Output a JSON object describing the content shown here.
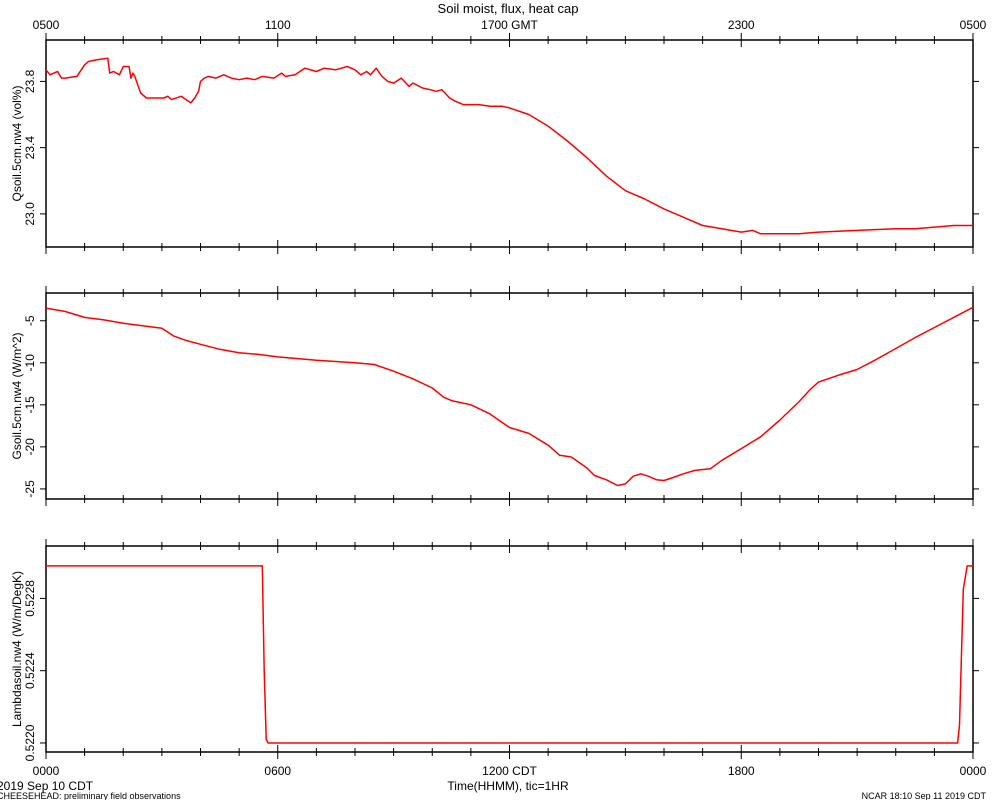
{
  "chart_data": {
    "type": "line",
    "title": "Soil moist, flux, heat cap",
    "top_axis": {
      "ticks": [
        "0500",
        "1100",
        "1700 GMT",
        "2300",
        "0500"
      ]
    },
    "bottom_axis": {
      "ticks": [
        "0000",
        "0600",
        "1200 CDT",
        "1800",
        "0000"
      ],
      "label": "Time(HHMM), tic=1HR",
      "left_note": "2019 Sep 10 CDT"
    },
    "footer": {
      "left": "CHEESEHEAD: preliminary field observations",
      "right": "NCAR 18:10 Sep 11 2019 CDT"
    },
    "x_unit": "hours from 0000 CDT",
    "xlim": [
      0,
      24
    ],
    "line_color": "#ff0000",
    "panels": [
      {
        "ylabel": "Qsoil.5cm.nw4 (vol%)",
        "ylim": [
          22.8,
          24.05
        ],
        "yticks": [
          "23.0",
          "23.4",
          "23.8"
        ],
        "ytick_values": [
          23.0,
          23.4,
          23.8
        ],
        "series": [
          {
            "x": [
              0,
              0.1,
              0.3,
              0.4,
              0.5,
              0.8,
              1.0,
              1.1,
              1.3,
              1.6,
              1.65,
              1.75,
              1.9,
              2.0,
              2.15,
              2.2,
              2.25,
              2.3,
              2.45,
              2.6,
              2.85,
              3.05,
              3.15,
              3.25,
              3.5,
              3.75,
              3.85,
              3.95,
              4.0,
              4.1,
              4.2,
              4.4,
              4.6,
              4.8,
              5.0,
              5.2,
              5.4,
              5.6,
              5.9,
              6.1,
              6.2,
              6.45,
              6.7,
              7.0,
              7.2,
              7.5,
              7.8,
              8.0,
              8.15,
              8.3,
              8.4,
              8.55,
              8.7,
              8.85,
              9.0,
              9.2,
              9.4,
              9.5,
              9.75,
              9.95,
              10.1,
              10.25,
              10.45,
              10.6,
              10.8,
              11.0,
              11.2,
              11.5,
              11.8,
              12.0,
              12.5,
              13.0,
              13.5,
              14.0,
              14.5,
              15.0,
              15.5,
              16.0,
              16.5,
              17.0,
              17.5,
              18.0,
              18.3,
              18.5,
              18.8,
              19.0,
              19.5,
              20.0,
              21.0,
              22.0,
              22.5,
              23.0,
              23.5,
              24.0
            ],
            "y": [
              23.87,
              23.84,
              23.86,
              23.82,
              23.82,
              23.83,
              23.9,
              23.92,
              23.93,
              23.94,
              23.85,
              23.86,
              23.84,
              23.89,
              23.89,
              23.82,
              23.85,
              23.83,
              23.73,
              23.7,
              23.7,
              23.7,
              23.71,
              23.69,
              23.71,
              23.67,
              23.7,
              23.74,
              23.8,
              23.82,
              23.83,
              23.82,
              23.84,
              23.82,
              23.81,
              23.82,
              23.81,
              23.83,
              23.82,
              23.85,
              23.83,
              23.84,
              23.88,
              23.86,
              23.88,
              23.87,
              23.89,
              23.87,
              23.84,
              23.86,
              23.84,
              23.88,
              23.83,
              23.8,
              23.79,
              23.82,
              23.77,
              23.79,
              23.76,
              23.75,
              23.74,
              23.75,
              23.7,
              23.68,
              23.66,
              23.66,
              23.66,
              23.65,
              23.65,
              23.64,
              23.6,
              23.53,
              23.44,
              23.34,
              23.23,
              23.14,
              23.09,
              23.03,
              22.98,
              22.93,
              22.91,
              22.89,
              22.9,
              22.88,
              22.88,
              22.88,
              22.88,
              22.89,
              22.9,
              22.91,
              22.91,
              22.92,
              22.93,
              22.93
            ]
          }
        ]
      },
      {
        "ylabel": "Gsoil.5cm.nw4 (W/m^2)",
        "ylim": [
          -26.2,
          -1.7
        ],
        "yticks": [
          "-5",
          "-10",
          "-15",
          "-20",
          "-25"
        ],
        "ytick_values": [
          -5,
          -10,
          -15,
          -20,
          -25
        ],
        "series": [
          {
            "x": [
              0,
              0.5,
              1.0,
              1.5,
              2.0,
              2.5,
              3.0,
              3.3,
              3.6,
              4.0,
              4.5,
              5.0,
              5.5,
              6.0,
              7.0,
              8.0,
              8.5,
              9.0,
              9.5,
              10.0,
              10.3,
              10.5,
              11.0,
              11.5,
              12.0,
              12.5,
              13.0,
              13.3,
              13.6,
              14.0,
              14.2,
              14.5,
              14.8,
              15.0,
              15.2,
              15.4,
              15.6,
              15.8,
              16.0,
              16.2,
              16.5,
              16.8,
              17.2,
              17.5,
              18.0,
              18.5,
              19.0,
              19.5,
              19.8,
              20.0,
              20.5,
              21.0,
              21.5,
              22.0,
              22.5,
              23.0,
              23.5,
              24.0
            ],
            "y": [
              -3.5,
              -3.9,
              -4.6,
              -4.9,
              -5.3,
              -5.6,
              -5.9,
              -6.8,
              -7.3,
              -7.8,
              -8.4,
              -8.8,
              -9.0,
              -9.3,
              -9.7,
              -10.0,
              -10.2,
              -11.0,
              -11.9,
              -13.0,
              -14.1,
              -14.5,
              -15.0,
              -16.1,
              -17.7,
              -18.4,
              -19.8,
              -21.0,
              -21.2,
              -22.5,
              -23.4,
              -23.9,
              -24.6,
              -24.4,
              -23.5,
              -23.2,
              -23.5,
              -23.9,
              -24.0,
              -23.7,
              -23.2,
              -22.8,
              -22.6,
              -21.6,
              -20.2,
              -18.8,
              -16.8,
              -14.6,
              -13.1,
              -12.3,
              -11.5,
              -10.8,
              -9.6,
              -8.3,
              -7.0,
              -5.8,
              -4.6,
              -3.4
            ]
          }
        ]
      },
      {
        "ylabel": "Lambdasoil.nw4 (W/m/DegK)",
        "ylim": [
          0.52195,
          0.52309
        ],
        "yticks": [
          "0.5220",
          "0.5224",
          "0.5228"
        ],
        "ytick_values": [
          0.522,
          0.5224,
          0.5228
        ],
        "series": [
          {
            "x": [
              0,
              5.6,
              5.65,
              5.7,
              5.75,
              6.0,
              12.0,
              18.0,
              23.6,
              23.65,
              23.75,
              23.85,
              24.0
            ],
            "y": [
              0.52298,
              0.52298,
              0.5224,
              0.52202,
              0.522,
              0.522,
              0.522,
              0.522,
              0.522,
              0.5221,
              0.52285,
              0.52298,
              0.52298
            ]
          }
        ]
      }
    ]
  }
}
